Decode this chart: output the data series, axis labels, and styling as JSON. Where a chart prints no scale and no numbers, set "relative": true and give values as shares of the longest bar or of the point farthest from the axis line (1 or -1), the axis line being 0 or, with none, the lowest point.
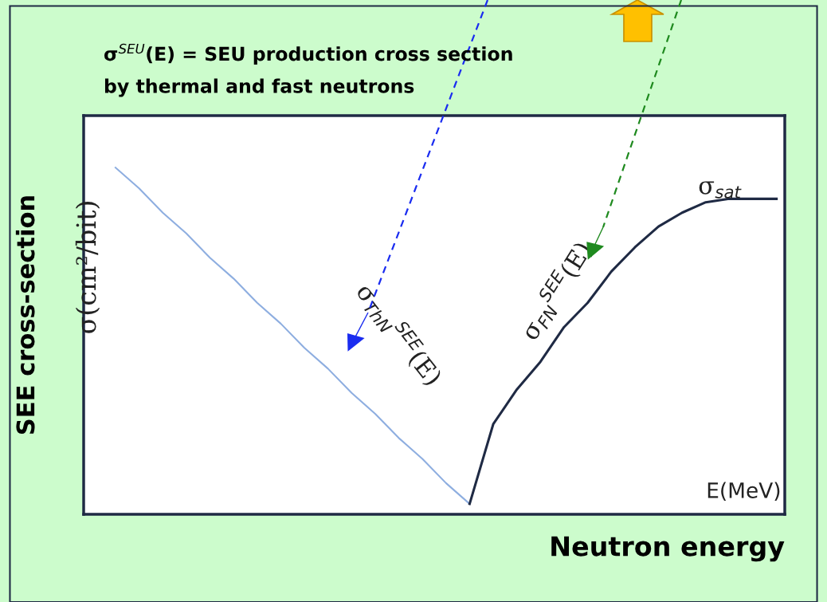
{
  "chart_data": {
    "type": "line",
    "relative": true,
    "title": "σ$^{SEU}$(E) = SEU production cross section",
    "subtitle": "by thermal and fast neutrons",
    "xlabel": "Neutron energy",
    "ylabel": "SEE cross-section",
    "categories": [
      null,
      null,
      null,
      null,
      null,
      null,
      null,
      null,
      null,
      null,
      null,
      null,
      null,
      null,
      null,
      null,
      null,
      null,
      null,
      null,
      null,
      null,
      null,
      null,
      null,
      null,
      null,
      null,
      null
    ],
    "series": [
      {
        "color": "#8eaee0",
        "values": [
          1,
          0.94,
          0.87,
          0.81,
          0.74,
          0.68,
          0.61,
          0.55,
          0.48,
          0.42,
          0.35,
          0.29,
          0.22,
          0.16,
          0.09,
          0.03,
          null,
          null,
          null,
          null,
          null,
          null,
          null,
          null,
          null,
          null,
          null,
          null,
          null
        ]
      },
      {
        "color": "#1f2a44",
        "values": [
          null,
          null,
          null,
          null,
          null,
          null,
          null,
          null,
          null,
          null,
          null,
          null,
          null,
          null,
          null,
          0.03,
          0.26,
          0.36,
          0.44,
          0.54,
          0.61,
          0.7,
          0.77,
          0.83,
          0.87,
          0.9,
          0.91,
          0.91,
          0.91
        ]
      }
    ],
    "annotations": [
      "σ(cm²/bit)",
      "σ$_{ThN}$$^{SEE}$(E)",
      "σ$_{FN}$$^{SEE}$(E)",
      "σ$_{sat}$",
      "E(MeV)"
    ],
    "legend": false,
    "grid": false
  }
}
